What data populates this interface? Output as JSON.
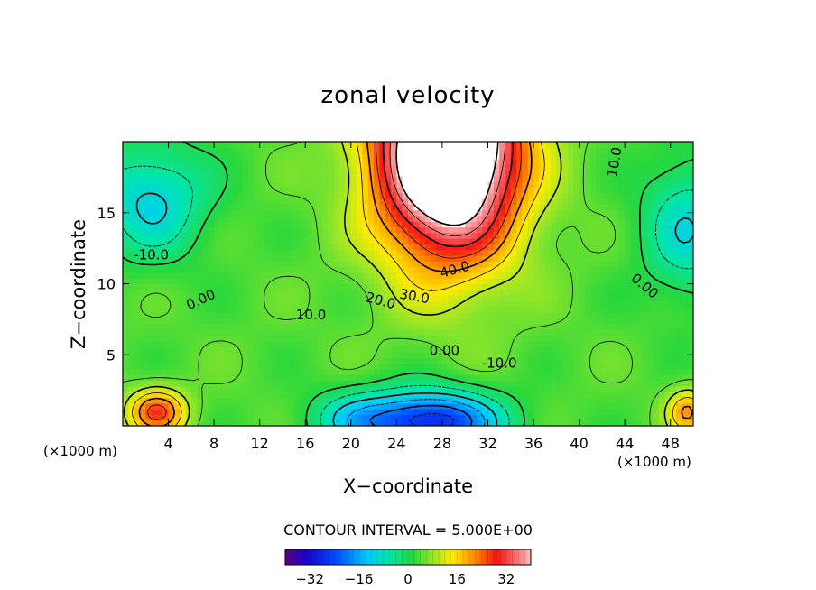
{
  "chart_data": {
    "type": "heatmap",
    "title": "zonal velocity",
    "xlabel": "X−coordinate",
    "ylabel": "Z−coordinate",
    "x_units_left": "(×1000 m)",
    "x_units_right": "(×1000 m)",
    "xlim": [
      0,
      50
    ],
    "ylim": [
      0,
      20
    ],
    "x_ticks": [
      4,
      8,
      12,
      16,
      20,
      24,
      28,
      32,
      36,
      40,
      44,
      48
    ],
    "x_tick_labels": [
      "4",
      "8",
      "12",
      "16",
      "20",
      "24",
      "28",
      "32",
      "36",
      "40",
      "44",
      "48"
    ],
    "y_ticks": [
      5,
      10,
      15
    ],
    "y_tick_labels": [
      "5",
      "10",
      "15"
    ],
    "contour_interval_text": "CONTOUR INTERVAL = 5.000E+00",
    "colorbar": {
      "range": [
        -40,
        40
      ],
      "ticks": [
        -32,
        -16,
        0,
        16,
        32
      ],
      "tick_labels": [
        "−32",
        "−16",
        "0",
        "16",
        "32"
      ]
    },
    "contour_labels": [
      {
        "text": "10.0",
        "x": 43.5,
        "z": 18.5,
        "rotate": -80
      },
      {
        "text": "-10.0",
        "x": 2.5,
        "z": 11.7,
        "rotate": 0
      },
      {
        "text": "0.00",
        "x": 7.0,
        "z": 8.6,
        "rotate": -25
      },
      {
        "text": "0.00",
        "x": 45.5,
        "z": 9.6,
        "rotate": 40
      },
      {
        "text": "10.0",
        "x": 16.5,
        "z": 7.5,
        "rotate": 0
      },
      {
        "text": "20.0",
        "x": 22.5,
        "z": 8.5,
        "rotate": 15
      },
      {
        "text": "30.0",
        "x": 25.5,
        "z": 8.8,
        "rotate": 10
      },
      {
        "text": "40.0",
        "x": 29.2,
        "z": 10.7,
        "rotate": -15
      },
      {
        "text": "0.00",
        "x": 28.2,
        "z": 5.0,
        "rotate": 0
      },
      {
        "text": "-10.0",
        "x": 33.0,
        "z": 4.1,
        "rotate": 0
      }
    ],
    "field": {
      "description_of_features": "warm jet centered near x=28,z=16 exceeding 40 (white saturated); cold core near x=27,z=0.5 about -30; cold pools upper left (x=2,z=16) and upper right (x=49,z=14); warm spot near x=3,z=1",
      "sources": [
        {
          "x": 28.5,
          "z": 19.5,
          "amp": 60,
          "sx": 6.2,
          "sz": 7.5
        },
        {
          "x": 27.0,
          "z": 0.3,
          "amp": -32,
          "sx": 6.0,
          "sz": 2.2
        },
        {
          "x": 2.5,
          "z": 16.0,
          "amp": -15,
          "sx": 5.0,
          "sz": 4.0
        },
        {
          "x": 49.5,
          "z": 14.0,
          "amp": -13,
          "sx": 4.0,
          "sz": 5.0
        },
        {
          "x": 3.0,
          "z": 1.0,
          "amp": 22,
          "sx": 2.5,
          "sz": 1.6
        },
        {
          "x": 49.5,
          "z": 1.0,
          "amp": 16,
          "sx": 1.8,
          "sz": 1.6
        },
        {
          "x": 20.0,
          "z": 0.5,
          "amp": -10,
          "sx": 4.0,
          "sz": 2.0
        }
      ],
      "background": 4
    }
  }
}
